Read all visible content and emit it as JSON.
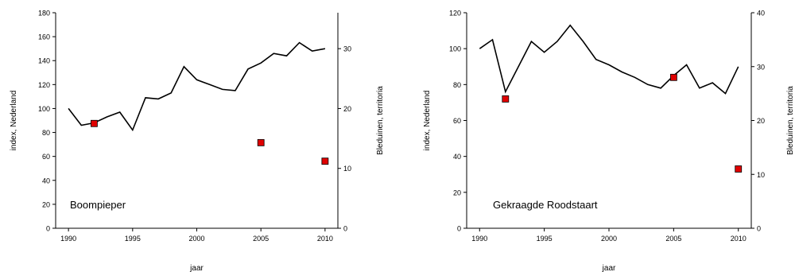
{
  "chart_data": [
    {
      "type": "line",
      "annotation": "Boompieper",
      "xlabel": "jaar",
      "ylabel": "index, Nederland",
      "y2label": "Bleduinen, territoria",
      "xlim": [
        1989,
        2011
      ],
      "ylim": [
        0,
        180
      ],
      "y2lim": [
        0,
        36
      ],
      "xticks": [
        1990,
        1995,
        2000,
        2005,
        2010
      ],
      "yticks": [
        0,
        20,
        40,
        60,
        80,
        100,
        120,
        140,
        160,
        180
      ],
      "y2ticks": [
        0,
        10,
        20,
        30
      ],
      "grid": false,
      "series": [
        {
          "axis": "left",
          "style": "line",
          "color": "#000000",
          "x": [
            1990,
            1991,
            1992,
            1993,
            1994,
            1995,
            1996,
            1997,
            1998,
            1999,
            2000,
            2001,
            2002,
            2003,
            2004,
            2005,
            2006,
            2007,
            2008,
            2009,
            2010
          ],
          "y": [
            100,
            86,
            88,
            93,
            97,
            82,
            109,
            108,
            113,
            135,
            124,
            120,
            116,
            115,
            133,
            138,
            146,
            144,
            155,
            148,
            150
          ]
        },
        {
          "axis": "right",
          "style": "marker",
          "color": "#e00000",
          "x": [
            1992,
            2005,
            2010
          ],
          "y": [
            17.5,
            14.3,
            11.2
          ]
        }
      ]
    },
    {
      "type": "line",
      "annotation": "Gekraagde Roodstaart",
      "xlabel": "jaar",
      "ylabel": "index, Nederland",
      "y2label": "Bleduinen, territoria",
      "xlim": [
        1989,
        2011
      ],
      "ylim": [
        0,
        120
      ],
      "y2lim": [
        0,
        40
      ],
      "xticks": [
        1990,
        1995,
        2000,
        2005,
        2010
      ],
      "yticks": [
        0,
        20,
        40,
        60,
        80,
        100,
        120
      ],
      "y2ticks": [
        0,
        10,
        20,
        30,
        40
      ],
      "grid": false,
      "series": [
        {
          "axis": "left",
          "style": "line",
          "color": "#000000",
          "x": [
            1990,
            1991,
            1992,
            1993,
            1994,
            1995,
            1996,
            1997,
            1998,
            1999,
            2000,
            2001,
            2002,
            2003,
            2004,
            2005,
            2006,
            2007,
            2008,
            2009,
            2010
          ],
          "y": [
            100,
            105,
            76,
            90,
            104,
            98,
            104,
            113,
            104,
            94,
            91,
            87,
            84,
            80,
            78,
            85,
            91,
            78,
            81,
            75,
            90
          ]
        },
        {
          "axis": "right",
          "style": "marker",
          "color": "#e00000",
          "x": [
            1992,
            2005,
            2010
          ],
          "y": [
            24,
            28,
            11
          ]
        }
      ]
    }
  ]
}
